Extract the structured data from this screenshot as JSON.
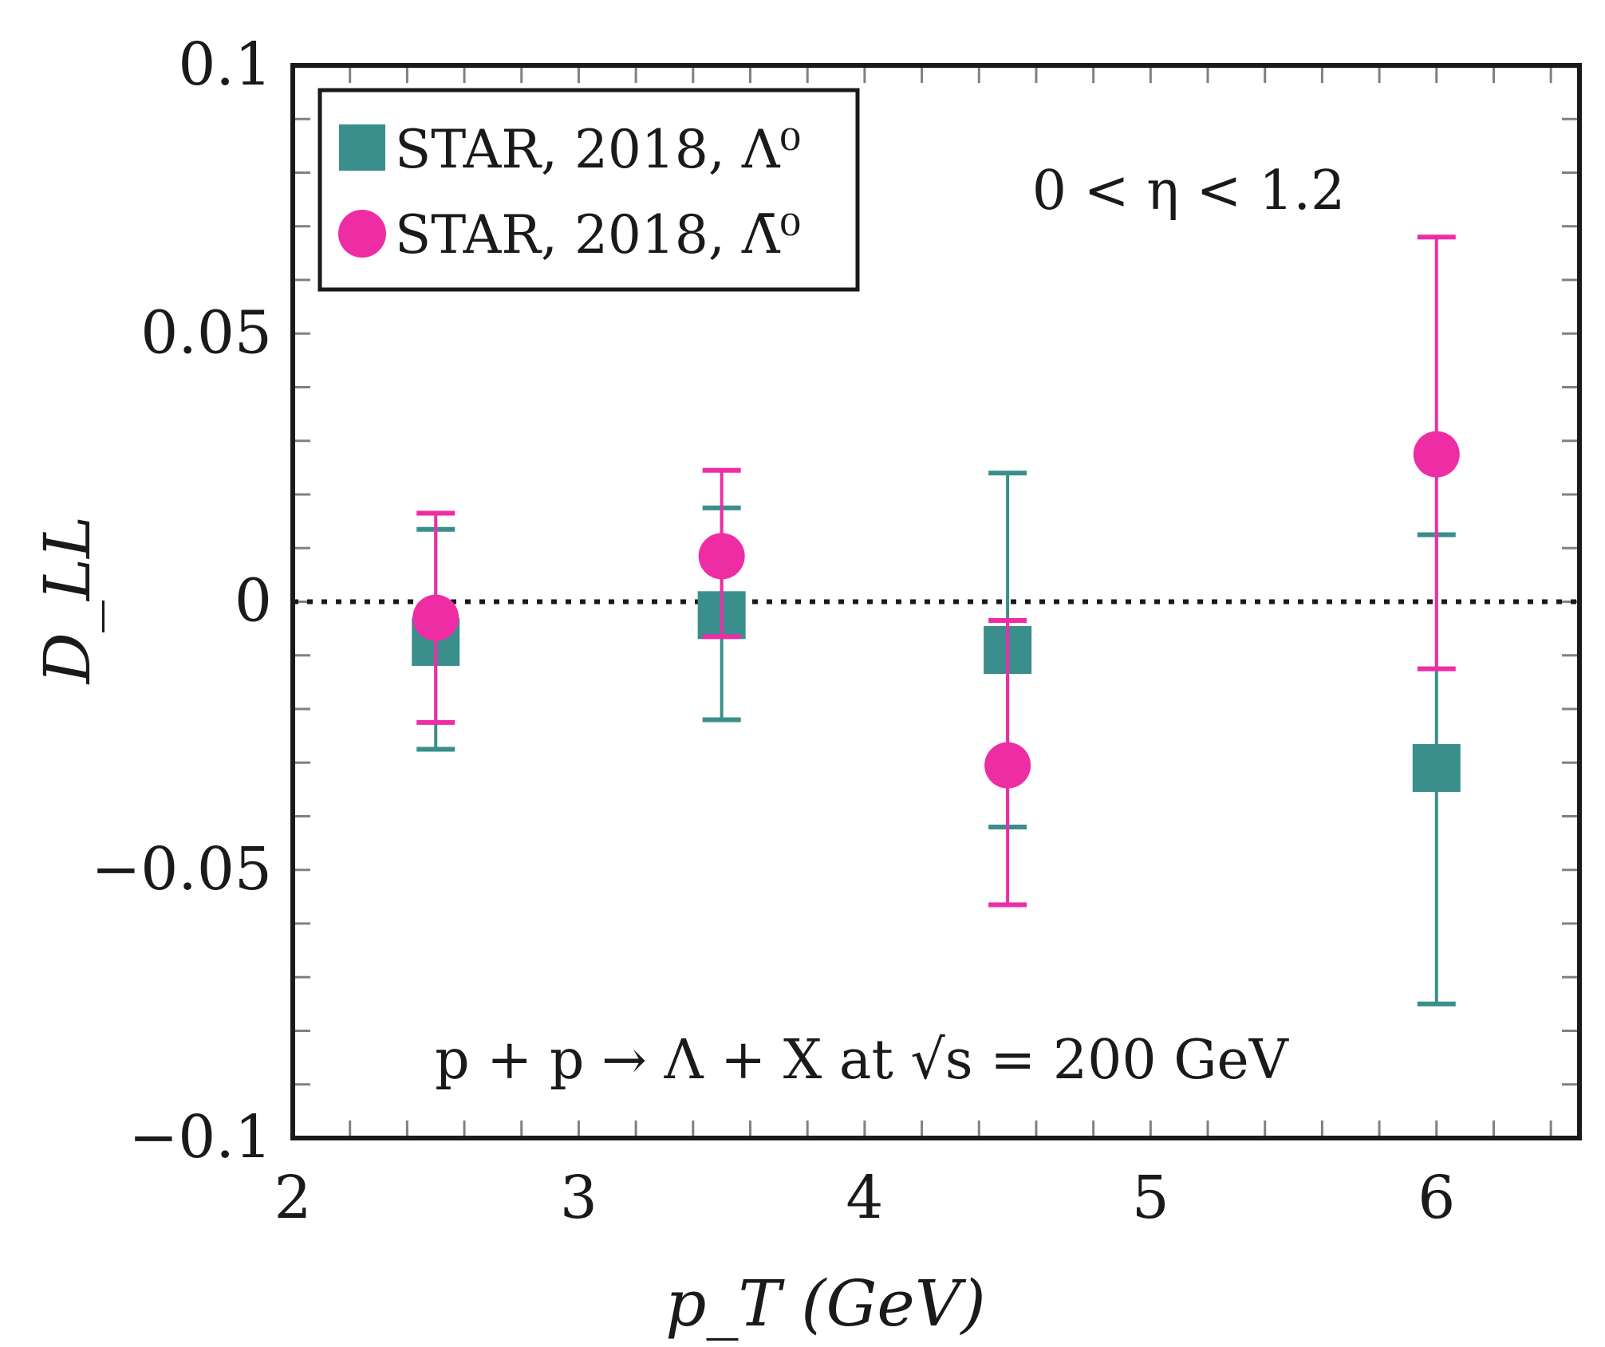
{
  "chart_data": {
    "type": "scatter",
    "title": "",
    "xlabel": "p_T (GeV)",
    "ylabel": "D_LL",
    "xlim": [
      2,
      6.5
    ],
    "ylim": [
      -0.1,
      0.1
    ],
    "x_ticks": [
      2,
      3,
      4,
      5,
      6
    ],
    "x_tick_labels": [
      "2",
      "3",
      "4",
      "5",
      "6"
    ],
    "y_ticks": [
      -0.1,
      -0.05,
      0,
      0.05,
      0.1
    ],
    "y_tick_labels": [
      "−0.1",
      "−0.05",
      "0",
      "0.05",
      "0.1"
    ],
    "reference_line": {
      "y": 0,
      "style": "dotted"
    },
    "annotations": [
      "0 < η < 1.2",
      "p + p → Λ + X at √s = 200 GeV"
    ],
    "legend_position": "top-left",
    "series": [
      {
        "name": "STAR, 2018, Λ⁰",
        "marker": "square",
        "color": "#3a8f8c",
        "points": [
          {
            "x": 2.5,
            "y": -0.0075,
            "err_low": -0.0275,
            "err_high": 0.0135
          },
          {
            "x": 3.5,
            "y": -0.0025,
            "err_low": -0.022,
            "err_high": 0.0175
          },
          {
            "x": 4.5,
            "y": -0.009,
            "err_low": -0.042,
            "err_high": 0.024
          },
          {
            "x": 6.0,
            "y": -0.031,
            "err_low": -0.075,
            "err_high": 0.0125
          }
        ]
      },
      {
        "name": "STAR, 2018, Λ̄⁰",
        "marker": "circle",
        "color": "#ee2da5",
        "points": [
          {
            "x": 2.5,
            "y": -0.003,
            "err_low": -0.0225,
            "err_high": 0.0165
          },
          {
            "x": 3.5,
            "y": 0.0085,
            "err_low": -0.0065,
            "err_high": 0.0245
          },
          {
            "x": 4.5,
            "y": -0.0305,
            "err_low": -0.0565,
            "err_high": -0.0035
          },
          {
            "x": 6.0,
            "y": 0.0275,
            "err_low": -0.0125,
            "err_high": 0.068
          }
        ]
      }
    ]
  },
  "colors": {
    "square_series": "#3a8f8c",
    "circle_series": "#ee2da5",
    "frame": "#1a1a1a",
    "minor_tick": "#808080"
  }
}
